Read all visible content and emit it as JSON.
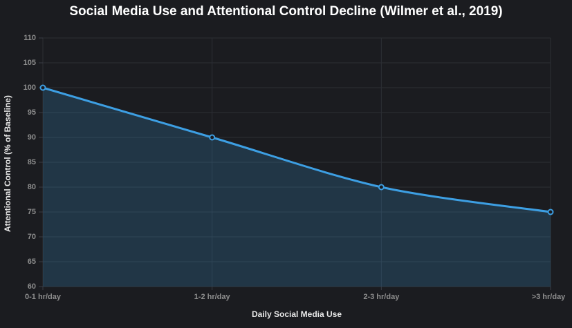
{
  "page": {
    "background": "#1b1c20"
  },
  "chart_data": {
    "type": "line",
    "title": "Social Media Use and Attentional Control Decline (Wilmer et al., 2019)",
    "categories": [
      "0-1 hr/day",
      "1-2 hr/day",
      "2-3 hr/day",
      ">3 hr/day"
    ],
    "series": [
      {
        "name": "Attentional Control (% of Baseline)",
        "values": [
          100,
          90,
          80,
          75
        ]
      }
    ],
    "xlabel": "Daily Social Media Use",
    "ylabel": "Attentional Control (% of Baseline)",
    "ylim": [
      60,
      110
    ],
    "ytick_step": 5,
    "yticks": [
      60,
      65,
      70,
      75,
      80,
      85,
      90,
      95,
      100,
      105,
      110
    ],
    "grid": true,
    "legend_position": "none",
    "curve": "smooth",
    "point_style": "open-circle",
    "colors": {
      "line": "#3d9fe3",
      "area_fill": "rgba(61,159,227,0.20)",
      "gridline": "#2c2f35",
      "tick_mark": "#3a3d44",
      "tick_label": "#8e8e8e",
      "axis_title": "#e8e8e8",
      "title": "#ffffff",
      "point_fill": "#1b1c20",
      "background": "#1b1c20"
    }
  }
}
